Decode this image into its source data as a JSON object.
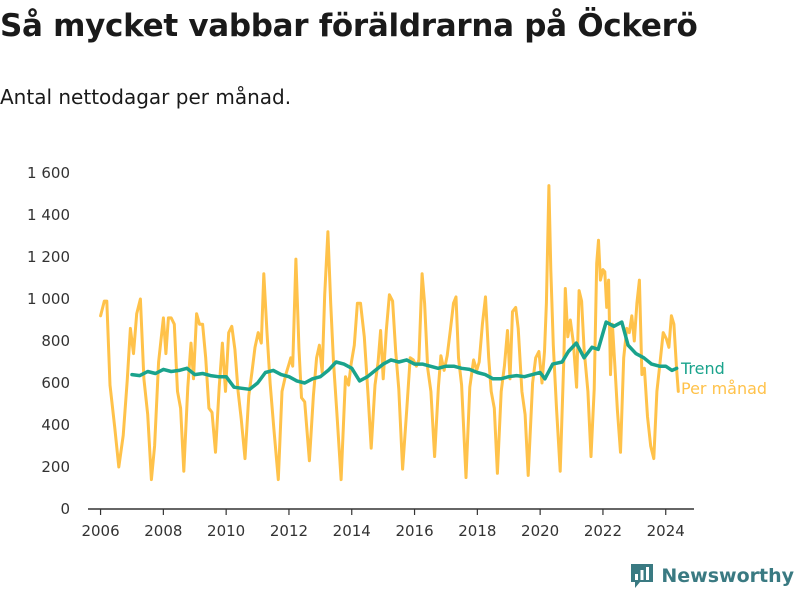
{
  "chart_data": {
    "type": "line",
    "title": "Så mycket vabbar föräldrarna på Öckerö",
    "subtitle": "Antal nettodagar per månad.",
    "xlabel": "",
    "ylabel": "",
    "xlim": [
      2005.6,
      2024.9
    ],
    "ylim": [
      0,
      1600
    ],
    "x_ticks": [
      2006,
      2008,
      2010,
      2012,
      2014,
      2016,
      2018,
      2020,
      2022,
      2024
    ],
    "y_ticks": [
      0,
      200,
      400,
      600,
      800,
      1000,
      1200,
      1400,
      1600
    ],
    "y_tick_labels": [
      "0",
      "200",
      "400",
      "600",
      "800",
      "1 000",
      "1 200",
      "1 400",
      "1 600"
    ],
    "grid": false,
    "legend_placement": "right-of-lines",
    "series": [
      {
        "name": "Per månad",
        "color": "#ffc24a",
        "points": [
          [
            2006.0,
            920
          ],
          [
            2006.12,
            990
          ],
          [
            2006.2,
            990
          ],
          [
            2006.3,
            590
          ],
          [
            2006.45,
            390
          ],
          [
            2006.58,
            200
          ],
          [
            2006.72,
            350
          ],
          [
            2006.85,
            610
          ],
          [
            2006.95,
            860
          ],
          [
            2007.05,
            740
          ],
          [
            2007.15,
            930
          ],
          [
            2007.27,
            1000
          ],
          [
            2007.38,
            620
          ],
          [
            2007.5,
            450
          ],
          [
            2007.62,
            140
          ],
          [
            2007.72,
            300
          ],
          [
            2007.85,
            700
          ],
          [
            2008.0,
            910
          ],
          [
            2008.08,
            740
          ],
          [
            2008.16,
            910
          ],
          [
            2008.25,
            910
          ],
          [
            2008.35,
            880
          ],
          [
            2008.45,
            560
          ],
          [
            2008.55,
            480
          ],
          [
            2008.65,
            180
          ],
          [
            2008.78,
            580
          ],
          [
            2008.88,
            790
          ],
          [
            2008.96,
            620
          ],
          [
            2009.06,
            930
          ],
          [
            2009.15,
            880
          ],
          [
            2009.25,
            880
          ],
          [
            2009.35,
            720
          ],
          [
            2009.45,
            480
          ],
          [
            2009.55,
            460
          ],
          [
            2009.66,
            270
          ],
          [
            2009.78,
            580
          ],
          [
            2009.88,
            790
          ],
          [
            2009.98,
            560
          ],
          [
            2010.08,
            840
          ],
          [
            2010.18,
            870
          ],
          [
            2010.28,
            760
          ],
          [
            2010.38,
            560
          ],
          [
            2010.48,
            430
          ],
          [
            2010.6,
            240
          ],
          [
            2010.72,
            540
          ],
          [
            2010.82,
            650
          ],
          [
            2010.92,
            770
          ],
          [
            2011.02,
            840
          ],
          [
            2011.12,
            790
          ],
          [
            2011.2,
            1120
          ],
          [
            2011.3,
            840
          ],
          [
            2011.4,
            600
          ],
          [
            2011.52,
            380
          ],
          [
            2011.66,
            140
          ],
          [
            2011.78,
            560
          ],
          [
            2011.9,
            640
          ],
          [
            2012.0,
            690
          ],
          [
            2012.06,
            720
          ],
          [
            2012.12,
            680
          ],
          [
            2012.22,
            1190
          ],
          [
            2012.32,
            760
          ],
          [
            2012.4,
            530
          ],
          [
            2012.5,
            510
          ],
          [
            2012.65,
            230
          ],
          [
            2012.78,
            540
          ],
          [
            2012.88,
            720
          ],
          [
            2012.97,
            780
          ],
          [
            2013.06,
            650
          ],
          [
            2013.14,
            1020
          ],
          [
            2013.24,
            1320
          ],
          [
            2013.33,
            980
          ],
          [
            2013.42,
            700
          ],
          [
            2013.52,
            470
          ],
          [
            2013.66,
            140
          ],
          [
            2013.8,
            630
          ],
          [
            2013.9,
            590
          ],
          [
            2013.98,
            690
          ],
          [
            2014.08,
            780
          ],
          [
            2014.18,
            980
          ],
          [
            2014.28,
            980
          ],
          [
            2014.4,
            820
          ],
          [
            2014.52,
            540
          ],
          [
            2014.62,
            290
          ],
          [
            2014.74,
            590
          ],
          [
            2014.84,
            700
          ],
          [
            2014.92,
            850
          ],
          [
            2015.0,
            620
          ],
          [
            2015.1,
            850
          ],
          [
            2015.2,
            1020
          ],
          [
            2015.3,
            990
          ],
          [
            2015.4,
            750
          ],
          [
            2015.5,
            570
          ],
          [
            2015.62,
            190
          ],
          [
            2015.75,
            470
          ],
          [
            2015.86,
            720
          ],
          [
            2015.96,
            710
          ],
          [
            2016.06,
            680
          ],
          [
            2016.14,
            710
          ],
          [
            2016.24,
            1120
          ],
          [
            2016.32,
            980
          ],
          [
            2016.42,
            670
          ],
          [
            2016.52,
            560
          ],
          [
            2016.64,
            250
          ],
          [
            2016.76,
            580
          ],
          [
            2016.84,
            730
          ],
          [
            2016.94,
            660
          ],
          [
            2017.04,
            730
          ],
          [
            2017.14,
            850
          ],
          [
            2017.24,
            980
          ],
          [
            2017.32,
            1010
          ],
          [
            2017.4,
            720
          ],
          [
            2017.5,
            590
          ],
          [
            2017.64,
            150
          ],
          [
            2017.76,
            580
          ],
          [
            2017.88,
            710
          ],
          [
            2017.98,
            660
          ],
          [
            2018.06,
            700
          ],
          [
            2018.16,
            880
          ],
          [
            2018.26,
            1010
          ],
          [
            2018.36,
            720
          ],
          [
            2018.44,
            560
          ],
          [
            2018.54,
            480
          ],
          [
            2018.64,
            170
          ],
          [
            2018.76,
            560
          ],
          [
            2018.86,
            680
          ],
          [
            2018.96,
            850
          ],
          [
            2019.04,
            620
          ],
          [
            2019.12,
            940
          ],
          [
            2019.22,
            960
          ],
          [
            2019.3,
            860
          ],
          [
            2019.42,
            560
          ],
          [
            2019.52,
            450
          ],
          [
            2019.62,
            160
          ],
          [
            2019.76,
            600
          ],
          [
            2019.86,
            720
          ],
          [
            2019.96,
            750
          ],
          [
            2020.06,
            600
          ],
          [
            2020.14,
            750
          ],
          [
            2020.2,
            980
          ],
          [
            2020.28,
            1540
          ],
          [
            2020.34,
            1140
          ],
          [
            2020.42,
            780
          ],
          [
            2020.52,
            480
          ],
          [
            2020.64,
            180
          ],
          [
            2020.76,
            740
          ],
          [
            2020.8,
            1050
          ],
          [
            2020.88,
            820
          ],
          [
            2020.96,
            900
          ],
          [
            2021.06,
            790
          ],
          [
            2021.16,
            580
          ],
          [
            2021.24,
            1040
          ],
          [
            2021.32,
            990
          ],
          [
            2021.4,
            760
          ],
          [
            2021.52,
            560
          ],
          [
            2021.62,
            250
          ],
          [
            2021.72,
            570
          ],
          [
            2021.8,
            1170
          ],
          [
            2021.86,
            1280
          ],
          [
            2021.92,
            1090
          ],
          [
            2022.0,
            1140
          ],
          [
            2022.06,
            1130
          ],
          [
            2022.12,
            960
          ],
          [
            2022.18,
            1090
          ],
          [
            2022.24,
            640
          ],
          [
            2022.3,
            880
          ],
          [
            2022.38,
            680
          ],
          [
            2022.46,
            470
          ],
          [
            2022.56,
            270
          ],
          [
            2022.66,
            720
          ],
          [
            2022.76,
            860
          ],
          [
            2022.84,
            840
          ],
          [
            2022.92,
            920
          ],
          [
            2023.0,
            800
          ],
          [
            2023.08,
            980
          ],
          [
            2023.16,
            1090
          ],
          [
            2023.24,
            640
          ],
          [
            2023.32,
            670
          ],
          [
            2023.42,
            440
          ],
          [
            2023.52,
            300
          ],
          [
            2023.62,
            240
          ],
          [
            2023.72,
            560
          ],
          [
            2023.82,
            700
          ],
          [
            2023.92,
            840
          ],
          [
            2024.02,
            810
          ],
          [
            2024.1,
            770
          ],
          [
            2024.18,
            920
          ],
          [
            2024.26,
            880
          ],
          [
            2024.34,
            680
          ],
          [
            2024.4,
            560
          ]
        ]
      },
      {
        "name": "Trend",
        "color": "#1aa38c",
        "points": [
          [
            2007.0,
            640
          ],
          [
            2007.25,
            635
          ],
          [
            2007.5,
            655
          ],
          [
            2007.75,
            645
          ],
          [
            2008.0,
            665
          ],
          [
            2008.25,
            655
          ],
          [
            2008.5,
            660
          ],
          [
            2008.75,
            670
          ],
          [
            2009.0,
            640
          ],
          [
            2009.25,
            645
          ],
          [
            2009.5,
            635
          ],
          [
            2009.75,
            630
          ],
          [
            2010.0,
            630
          ],
          [
            2010.25,
            580
          ],
          [
            2010.5,
            575
          ],
          [
            2010.75,
            570
          ],
          [
            2011.0,
            600
          ],
          [
            2011.25,
            650
          ],
          [
            2011.5,
            660
          ],
          [
            2011.75,
            640
          ],
          [
            2012.0,
            630
          ],
          [
            2012.25,
            610
          ],
          [
            2012.5,
            600
          ],
          [
            2012.75,
            620
          ],
          [
            2013.0,
            630
          ],
          [
            2013.25,
            660
          ],
          [
            2013.5,
            700
          ],
          [
            2013.75,
            690
          ],
          [
            2014.0,
            670
          ],
          [
            2014.25,
            610
          ],
          [
            2014.5,
            630
          ],
          [
            2014.75,
            660
          ],
          [
            2015.0,
            690
          ],
          [
            2015.25,
            710
          ],
          [
            2015.5,
            700
          ],
          [
            2015.75,
            710
          ],
          [
            2016.0,
            690
          ],
          [
            2016.25,
            690
          ],
          [
            2016.5,
            680
          ],
          [
            2016.75,
            670
          ],
          [
            2017.0,
            680
          ],
          [
            2017.25,
            680
          ],
          [
            2017.5,
            670
          ],
          [
            2017.75,
            665
          ],
          [
            2018.0,
            650
          ],
          [
            2018.25,
            640
          ],
          [
            2018.5,
            620
          ],
          [
            2018.75,
            620
          ],
          [
            2019.0,
            630
          ],
          [
            2019.25,
            635
          ],
          [
            2019.5,
            630
          ],
          [
            2019.75,
            640
          ],
          [
            2020.0,
            650
          ],
          [
            2020.15,
            620
          ],
          [
            2020.4,
            690
          ],
          [
            2020.7,
            700
          ],
          [
            2020.9,
            750
          ],
          [
            2021.15,
            790
          ],
          [
            2021.4,
            720
          ],
          [
            2021.65,
            770
          ],
          [
            2021.85,
            760
          ],
          [
            2022.1,
            890
          ],
          [
            2022.35,
            870
          ],
          [
            2022.6,
            890
          ],
          [
            2022.8,
            780
          ],
          [
            2023.05,
            740
          ],
          [
            2023.3,
            720
          ],
          [
            2023.55,
            690
          ],
          [
            2023.8,
            680
          ],
          [
            2024.0,
            680
          ],
          [
            2024.2,
            660
          ],
          [
            2024.35,
            670
          ]
        ]
      }
    ]
  },
  "brand": {
    "name": "Newsworthy"
  }
}
